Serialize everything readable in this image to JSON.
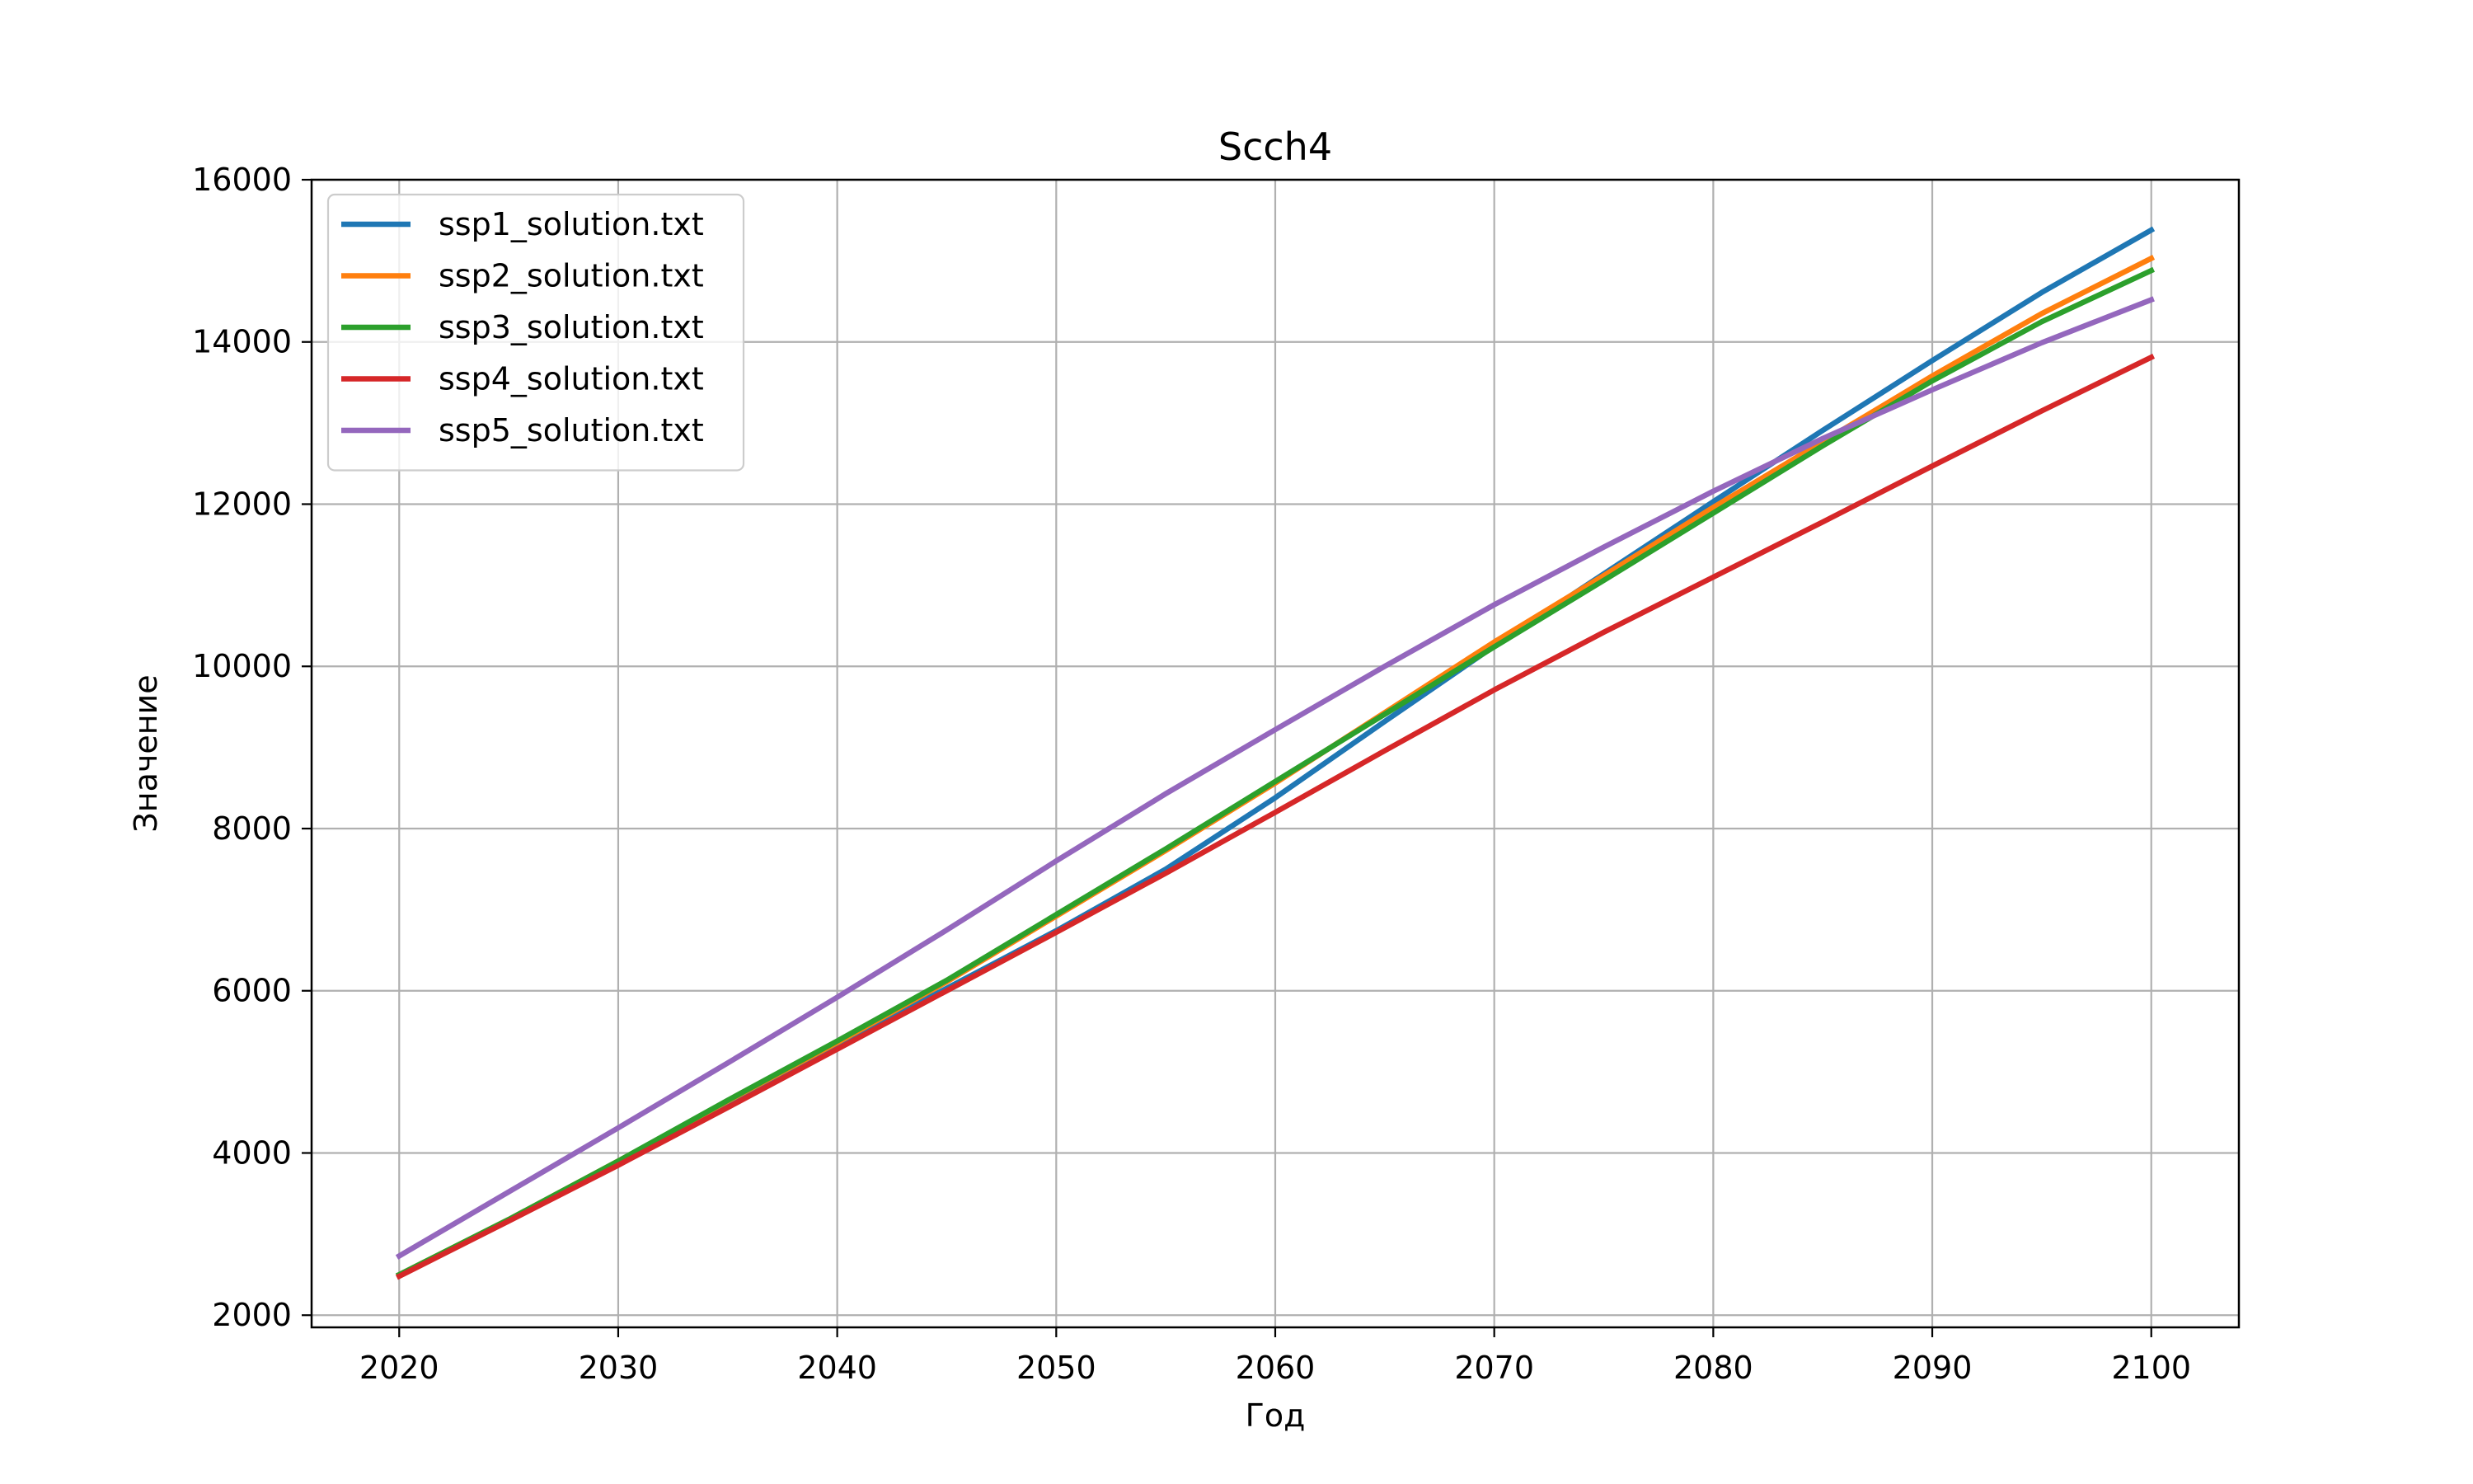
{
  "chart_data": {
    "type": "line",
    "title": "Scch4",
    "xlabel": "Год",
    "ylabel": "Значение",
    "xlim": [
      2016,
      2104
    ],
    "ylim": [
      1850,
      16000
    ],
    "xticks": [
      2020,
      2030,
      2040,
      2050,
      2060,
      2070,
      2080,
      2090,
      2100
    ],
    "yticks": [
      2000,
      4000,
      6000,
      8000,
      10000,
      12000,
      14000,
      16000
    ],
    "x": [
      2020,
      2025,
      2030,
      2035,
      2040,
      2045,
      2050,
      2055,
      2060,
      2065,
      2070,
      2075,
      2080,
      2085,
      2090,
      2095,
      2100
    ],
    "grid": true,
    "legend_position": "upper-left",
    "series": [
      {
        "name": "ssp1_solution.txt",
        "color": "#1f77b4",
        "values": [
          2500,
          3170,
          3880,
          4620,
          5330,
          6030,
          6740,
          7500,
          8380,
          9320,
          10250,
          11140,
          12030,
          12910,
          13770,
          14610,
          15380
        ]
      },
      {
        "name": "ssp2_solution.txt",
        "color": "#ff7f0e",
        "values": [
          2500,
          3180,
          3900,
          4640,
          5360,
          6110,
          6920,
          7730,
          8560,
          9430,
          10300,
          11120,
          11960,
          12770,
          13580,
          14350,
          15030
        ]
      },
      {
        "name": "ssp3_solution.txt",
        "color": "#2ca02c",
        "values": [
          2500,
          3180,
          3900,
          4650,
          5380,
          6130,
          6940,
          7750,
          8580,
          9410,
          10240,
          11060,
          11890,
          12720,
          13520,
          14250,
          14880
        ]
      },
      {
        "name": "ssp4_solution.txt",
        "color": "#d62728",
        "values": [
          2480,
          3160,
          3850,
          4560,
          5280,
          6000,
          6720,
          7450,
          8200,
          8960,
          9710,
          10420,
          11100,
          11780,
          12470,
          13150,
          13810
        ]
      },
      {
        "name": "ssp5_solution.txt",
        "color": "#9467bd",
        "values": [
          2730,
          3520,
          4310,
          5110,
          5920,
          6750,
          7600,
          8430,
          9220,
          10000,
          10760,
          11470,
          12160,
          12810,
          13410,
          13990,
          14520
        ]
      }
    ]
  }
}
